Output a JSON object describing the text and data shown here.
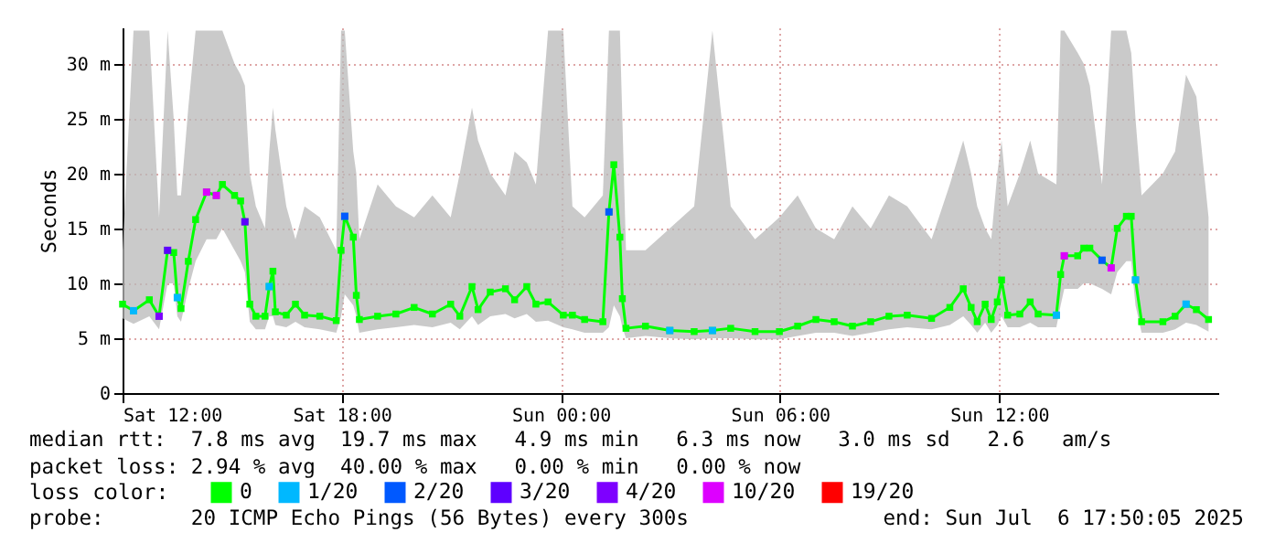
{
  "chart_data": {
    "type": "line",
    "ylabel": "Seconds",
    "legend_title": "loss color:",
    "legend": "bottom",
    "grid": true,
    "marker": "square",
    "line_style": "solid",
    "xlim": [
      "2025-07-05T12:00",
      "2025-07-06T18:00"
    ],
    "xticks": [
      {
        "value": "2025-07-05T12:00",
        "label": "Sat 12:00"
      },
      {
        "value": "2025-07-05T18:00",
        "label": "Sat 18:00"
      },
      {
        "value": "2025-07-06T00:00",
        "label": "Sun 00:00"
      },
      {
        "value": "2025-07-06T06:00",
        "label": "Sun 06:00"
      },
      {
        "value": "2025-07-06T12:00",
        "label": "Sun 12:00"
      }
    ],
    "ylim": [
      0,
      33.3
    ],
    "yticks": [
      0,
      {
        "value": 5,
        "label": "5 m"
      },
      {
        "value": 10,
        "label": "10 m"
      },
      {
        "value": 15,
        "label": "15 m"
      },
      {
        "value": 20,
        "label": "20 m"
      },
      {
        "value": 25,
        "label": "25 m"
      },
      {
        "value": 30,
        "label": "30 m"
      }
    ],
    "annotations": [
      "median rtt:  7.8 ms avg  19.7 ms max   4.9 ms min   6.3 ms now   3.0 ms sd   2.6   am/s",
      "packet loss: 2.94 % avg  40.00 % max   0.00 % min   0.00 % now",
      "probe:       20 ICMP Echo Pings (56 Bytes) every 300s",
      "end: Sun Jul  6 17:50:05 2025"
    ],
    "series": [
      {
        "name": "0",
        "color": "#00ff00",
        "x": [
          "2025-07-05T12:00",
          "2025-07-05T12:18",
          "2025-07-05T12:44",
          "2025-07-05T13:00",
          "2025-07-05T13:14",
          "2025-07-05T13:24",
          "2025-07-05T13:30",
          "2025-07-05T13:36",
          "2025-07-05T13:48",
          "2025-07-05T14:00",
          "2025-07-05T14:18",
          "2025-07-05T14:34",
          "2025-07-05T14:44",
          "2025-07-05T15:04",
          "2025-07-05T15:14",
          "2025-07-05T15:21",
          "2025-07-05T15:29",
          "2025-07-05T15:39",
          "2025-07-05T15:54",
          "2025-07-05T16:01",
          "2025-07-05T16:07",
          "2025-07-05T16:11",
          "2025-07-05T16:29",
          "2025-07-05T16:44",
          "2025-07-05T16:59",
          "2025-07-05T17:24",
          "2025-07-05T17:51",
          "2025-07-05T17:59",
          "2025-07-05T18:05",
          "2025-07-05T18:19",
          "2025-07-05T18:24",
          "2025-07-05T18:29",
          "2025-07-05T18:59",
          "2025-07-05T19:29",
          "2025-07-05T19:59",
          "2025-07-05T20:29",
          "2025-07-05T20:59",
          "2025-07-05T21:14",
          "2025-07-05T21:34",
          "2025-07-05T21:44",
          "2025-07-05T22:04",
          "2025-07-05T22:29",
          "2025-07-05T22:44",
          "2025-07-05T23:04",
          "2025-07-05T23:19",
          "2025-07-05T23:39",
          "2025-07-06T00:04",
          "2025-07-06T00:19",
          "2025-07-06T00:39",
          "2025-07-06T01:09",
          "2025-07-06T01:19",
          "2025-07-06T01:27",
          "2025-07-06T01:37",
          "2025-07-06T01:41",
          "2025-07-06T01:47",
          "2025-07-06T02:19",
          "2025-07-06T02:59",
          "2025-07-06T03:39",
          "2025-07-06T04:09",
          "2025-07-06T04:39",
          "2025-07-06T05:19",
          "2025-07-06T05:59",
          "2025-07-06T06:29",
          "2025-07-06T06:59",
          "2025-07-06T07:29",
          "2025-07-06T07:59",
          "2025-07-06T08:29",
          "2025-07-06T08:59",
          "2025-07-06T09:29",
          "2025-07-06T10:09",
          "2025-07-06T10:39",
          "2025-07-06T11:01",
          "2025-07-06T11:14",
          "2025-07-06T11:24",
          "2025-07-06T11:37",
          "2025-07-06T11:47",
          "2025-07-06T11:57",
          "2025-07-06T12:04",
          "2025-07-06T12:14",
          "2025-07-06T12:34",
          "2025-07-06T12:51",
          "2025-07-06T13:04",
          "2025-07-06T13:34",
          "2025-07-06T13:41",
          "2025-07-06T13:47",
          "2025-07-06T14:09",
          "2025-07-06T14:19",
          "2025-07-06T14:29",
          "2025-07-06T14:49",
          "2025-07-06T15:04",
          "2025-07-06T15:14",
          "2025-07-06T15:29",
          "2025-07-06T15:37",
          "2025-07-06T15:44",
          "2025-07-06T15:54",
          "2025-07-06T16:29",
          "2025-07-06T16:49",
          "2025-07-06T17:07",
          "2025-07-06T17:24",
          "2025-07-06T17:44"
        ],
        "values": [
          8.1,
          7.5,
          8.5,
          7.0,
          13.0,
          12.8,
          8.7,
          7.7,
          12.0,
          15.8,
          18.3,
          18.0,
          19.0,
          18.0,
          17.5,
          15.6,
          8.1,
          7.0,
          7.0,
          9.7,
          11.1,
          7.4,
          7.1,
          8.1,
          7.1,
          7.0,
          6.6,
          13.0,
          16.1,
          14.2,
          8.9,
          6.7,
          7.0,
          7.2,
          7.8,
          7.2,
          8.1,
          7.0,
          9.7,
          7.6,
          9.2,
          9.5,
          8.5,
          9.7,
          8.1,
          8.3,
          7.1,
          7.1,
          6.7,
          6.5,
          16.5,
          20.8,
          14.2,
          8.6,
          5.9,
          6.1,
          5.7,
          5.6,
          5.7,
          5.9,
          5.6,
          5.6,
          6.1,
          6.7,
          6.5,
          6.1,
          6.5,
          7.0,
          7.1,
          6.8,
          7.8,
          9.5,
          7.8,
          6.5,
          8.1,
          6.7,
          8.3,
          10.3,
          7.1,
          7.2,
          8.3,
          7.2,
          7.1,
          10.8,
          12.5,
          12.5,
          13.2,
          13.2,
          12.1,
          11.4,
          15.0,
          16.1,
          16.1,
          10.3,
          6.5,
          6.5,
          7.0,
          8.1,
          7.6,
          6.7
        ],
        "lower": [
          6.8,
          6.3,
          7.0,
          5.8,
          10.0,
          10.0,
          7.0,
          6.5,
          9.5,
          12.0,
          14.0,
          14.0,
          15.0,
          13.0,
          12.0,
          11.0,
          6.5,
          5.8,
          5.8,
          7.0,
          7.0,
          6.2,
          6.0,
          6.5,
          6.0,
          5.8,
          5.5,
          7.0,
          9.0,
          8.0,
          7.0,
          5.5,
          5.8,
          6.0,
          6.2,
          6.0,
          6.4,
          5.8,
          7.0,
          6.2,
          7.0,
          7.2,
          6.8,
          7.2,
          6.5,
          6.6,
          6.0,
          5.8,
          5.5,
          5.5,
          6.0,
          8.0,
          7.0,
          6.0,
          5.0,
          5.2,
          5.0,
          4.9,
          5.0,
          5.0,
          4.9,
          4.9,
          5.2,
          5.5,
          5.5,
          5.2,
          5.5,
          5.8,
          6.0,
          5.8,
          6.2,
          7.0,
          6.2,
          5.5,
          6.4,
          5.5,
          6.2,
          7.0,
          6.0,
          6.0,
          6.4,
          6.0,
          6.0,
          8.0,
          9.5,
          9.5,
          10.0,
          10.0,
          9.5,
          9.0,
          11.0,
          12.0,
          12.0,
          8.0,
          5.5,
          5.5,
          5.8,
          6.4,
          6.2,
          5.6
        ],
        "upper": [
          13,
          33,
          33,
          16,
          33,
          25,
          18,
          18,
          26,
          33,
          33,
          33,
          33,
          30,
          29,
          28,
          20,
          17,
          15,
          22,
          26,
          24,
          17,
          14,
          17,
          16,
          13,
          33,
          33,
          22,
          20,
          14,
          19,
          17,
          16,
          18,
          16,
          20,
          26,
          23,
          20,
          18,
          22,
          21,
          19,
          33,
          33,
          17,
          16,
          18,
          33,
          33,
          33,
          25,
          13,
          13,
          15,
          17,
          33,
          17,
          14,
          16,
          18,
          15,
          14,
          17,
          15,
          18,
          17,
          14,
          19,
          23,
          20,
          17,
          15,
          14,
          20,
          23,
          17,
          20,
          23,
          20,
          19,
          33,
          33,
          31,
          30,
          28,
          19,
          33,
          33,
          33,
          31,
          25,
          18,
          20,
          22,
          29,
          27,
          16
        ]
      },
      {
        "name": "1/20",
        "color": "#00b8ff",
        "type": "scatter",
        "x": [
          "2025-07-05T12:18",
          "2025-07-05T13:30",
          "2025-07-05T16:01",
          "2025-07-06T02:59",
          "2025-07-06T04:09",
          "2025-07-06T13:34",
          "2025-07-06T15:44",
          "2025-07-06T17:07"
        ],
        "values": [
          7.5,
          8.7,
          9.7,
          5.7,
          5.7,
          7.1,
          10.3,
          8.1
        ]
      },
      {
        "name": "2/20",
        "color": "#0059ff",
        "type": "scatter",
        "x": [
          "2025-07-05T18:05",
          "2025-07-06T01:19",
          "2025-07-06T14:49"
        ],
        "values": [
          16.1,
          16.5,
          12.1
        ]
      },
      {
        "name": "3/20",
        "color": "#5e00ff",
        "type": "scatter",
        "x": [
          "2025-07-05T13:14",
          "2025-07-05T15:21"
        ],
        "values": [
          13.0,
          15.6
        ]
      },
      {
        "name": "4/20",
        "color": "#7e00ff",
        "type": "scatter",
        "x": [
          "2025-07-05T13:00"
        ],
        "values": [
          7.0
        ]
      },
      {
        "name": "10/20",
        "color": "#dd00ff",
        "type": "scatter",
        "x": [
          "2025-07-05T14:18",
          "2025-07-05T14:34",
          "2025-07-06T13:47",
          "2025-07-06T15:04"
        ],
        "values": [
          18.3,
          18.0,
          12.5,
          11.4
        ]
      },
      {
        "name": "19/20",
        "color": "#ff0000",
        "type": "scatter"
      }
    ]
  }
}
